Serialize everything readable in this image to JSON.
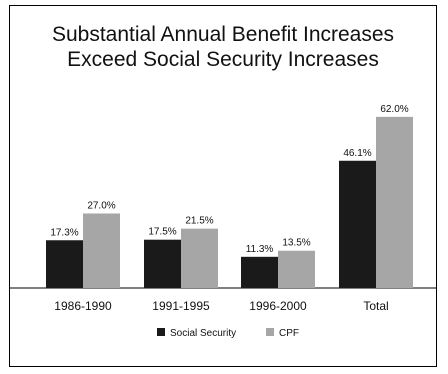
{
  "chart_data": {
    "type": "bar",
    "title_lines": [
      "Substantial Annual Benefit Increases",
      "Exceed Social Security Increases"
    ],
    "categories": [
      "1986-1990",
      "1991-1995",
      "1996-2000",
      "Total"
    ],
    "series": [
      {
        "name": "Social Security",
        "color": "#1a1a1a",
        "values": [
          17.3,
          17.5,
          11.3,
          46.1
        ],
        "labels": [
          "17.3%",
          "17.5%",
          "11.3%",
          "46.1%"
        ]
      },
      {
        "name": "CPF",
        "color": "#a6a6a6",
        "values": [
          27.0,
          21.5,
          13.5,
          62.0
        ],
        "labels": [
          "27.0%",
          "21.5%",
          "13.5%",
          "62.0%"
        ]
      }
    ],
    "ylim": [
      0,
      70
    ],
    "grid": false,
    "legend_position": "bottom"
  }
}
